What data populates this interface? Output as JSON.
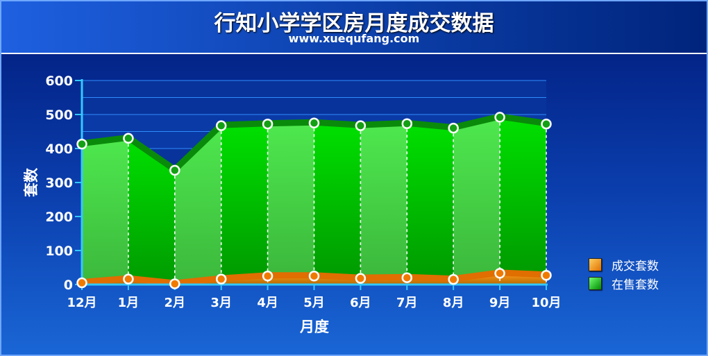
{
  "title": "行知小学学区房月度成交数据",
  "subtitle": "www.xuequfang.com",
  "chart_data": {
    "type": "area",
    "xlabel": "月度",
    "ylabel": "套数",
    "categories": [
      "12月",
      "1月",
      "2月",
      "3月",
      "4月",
      "5月",
      "6月",
      "7月",
      "8月",
      "9月",
      "10月"
    ],
    "ylim": [
      0,
      600
    ],
    "yticks": [
      0,
      100,
      200,
      300,
      400,
      500,
      600
    ],
    "legend_position": "right",
    "series": [
      {
        "name": "成交套数",
        "color": "#f08a00",
        "values": [
          5,
          16,
          2,
          16,
          25,
          25,
          18,
          20,
          15,
          33,
          27
        ]
      },
      {
        "name": "在售套数",
        "color": "#00b400",
        "values": [
          413,
          430,
          336,
          467,
          472,
          475,
          467,
          473,
          460,
          492,
          472
        ]
      }
    ]
  }
}
